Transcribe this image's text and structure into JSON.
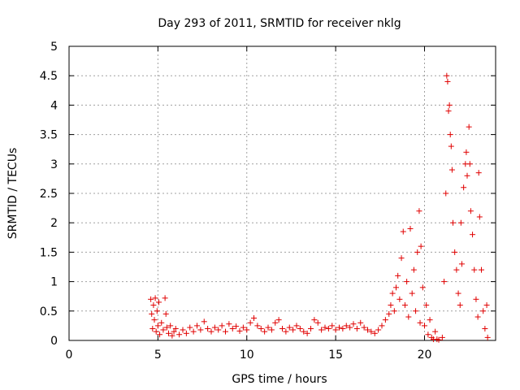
{
  "chart_data": {
    "type": "scatter",
    "title": "Day 293 of 2011, SRMTID for receiver nklg",
    "xlabel": "GPS time / hours",
    "ylabel": "SRMTID / TECUs",
    "xlim": [
      0,
      24
    ],
    "ylim": [
      0,
      5
    ],
    "xticks": [
      0,
      5,
      10,
      15,
      20
    ],
    "xtick_labels": [
      "0",
      "5",
      "10",
      "15",
      "20"
    ],
    "yticks": [
      0,
      0.5,
      1,
      1.5,
      2,
      2.5,
      3,
      3.5,
      4,
      4.5,
      5
    ],
    "ytick_labels": [
      "0",
      "0.5",
      "1",
      "1.5",
      "2",
      "2.5",
      "3",
      "3.5",
      "4",
      "4.5",
      "5"
    ],
    "grid": true,
    "marker": "+",
    "marker_color": "#e00000",
    "series": [
      {
        "name": "nklg",
        "points": [
          [
            4.6,
            0.7
          ],
          [
            4.65,
            0.45
          ],
          [
            4.7,
            0.2
          ],
          [
            4.75,
            0.6
          ],
          [
            4.8,
            0.35
          ],
          [
            4.85,
            0.72
          ],
          [
            4.9,
            0.15
          ],
          [
            4.95,
            0.5
          ],
          [
            5.0,
            0.25
          ],
          [
            5.05,
            0.65
          ],
          [
            5.1,
            0.1
          ],
          [
            5.2,
            0.3
          ],
          [
            5.3,
            0.18
          ],
          [
            5.4,
            0.72
          ],
          [
            5.45,
            0.45
          ],
          [
            5.5,
            0.22
          ],
          [
            5.6,
            0.12
          ],
          [
            5.7,
            0.25
          ],
          [
            5.8,
            0.08
          ],
          [
            5.9,
            0.15
          ],
          [
            6.0,
            0.2
          ],
          [
            6.2,
            0.1
          ],
          [
            6.4,
            0.18
          ],
          [
            6.6,
            0.12
          ],
          [
            6.8,
            0.22
          ],
          [
            7.0,
            0.15
          ],
          [
            7.2,
            0.25
          ],
          [
            7.4,
            0.18
          ],
          [
            7.6,
            0.32
          ],
          [
            7.8,
            0.2
          ],
          [
            8.0,
            0.15
          ],
          [
            8.2,
            0.22
          ],
          [
            8.4,
            0.18
          ],
          [
            8.6,
            0.25
          ],
          [
            8.8,
            0.15
          ],
          [
            9.0,
            0.28
          ],
          [
            9.2,
            0.2
          ],
          [
            9.4,
            0.24
          ],
          [
            9.6,
            0.16
          ],
          [
            9.8,
            0.22
          ],
          [
            10.0,
            0.18
          ],
          [
            10.2,
            0.3
          ],
          [
            10.4,
            0.38
          ],
          [
            10.6,
            0.25
          ],
          [
            10.8,
            0.2
          ],
          [
            11.0,
            0.15
          ],
          [
            11.2,
            0.22
          ],
          [
            11.4,
            0.18
          ],
          [
            11.6,
            0.3
          ],
          [
            11.8,
            0.35
          ],
          [
            12.0,
            0.2
          ],
          [
            12.2,
            0.15
          ],
          [
            12.4,
            0.22
          ],
          [
            12.6,
            0.18
          ],
          [
            12.8,
            0.25
          ],
          [
            13.0,
            0.2
          ],
          [
            13.2,
            0.15
          ],
          [
            13.4,
            0.12
          ],
          [
            13.6,
            0.2
          ],
          [
            13.8,
            0.35
          ],
          [
            14.0,
            0.3
          ],
          [
            14.2,
            0.18
          ],
          [
            14.4,
            0.22
          ],
          [
            14.6,
            0.2
          ],
          [
            14.8,
            0.25
          ],
          [
            15.0,
            0.18
          ],
          [
            15.2,
            0.22
          ],
          [
            15.4,
            0.2
          ],
          [
            15.6,
            0.25
          ],
          [
            15.8,
            0.22
          ],
          [
            16.0,
            0.28
          ],
          [
            16.2,
            0.2
          ],
          [
            16.4,
            0.3
          ],
          [
            16.6,
            0.22
          ],
          [
            16.8,
            0.18
          ],
          [
            17.0,
            0.15
          ],
          [
            17.2,
            0.12
          ],
          [
            17.4,
            0.18
          ],
          [
            17.6,
            0.25
          ],
          [
            17.8,
            0.35
          ],
          [
            18.0,
            0.45
          ],
          [
            18.1,
            0.6
          ],
          [
            18.2,
            0.8
          ],
          [
            18.3,
            0.5
          ],
          [
            18.4,
            0.9
          ],
          [
            18.5,
            1.1
          ],
          [
            18.6,
            0.7
          ],
          [
            18.7,
            1.4
          ],
          [
            18.8,
            1.85
          ],
          [
            18.9,
            0.6
          ],
          [
            19.0,
            1.0
          ],
          [
            19.1,
            0.4
          ],
          [
            19.2,
            1.9
          ],
          [
            19.3,
            0.8
          ],
          [
            19.4,
            1.2
          ],
          [
            19.5,
            0.5
          ],
          [
            19.6,
            1.5
          ],
          [
            19.7,
            2.2
          ],
          [
            19.75,
            0.3
          ],
          [
            19.8,
            1.6
          ],
          [
            19.9,
            0.9
          ],
          [
            20.0,
            0.25
          ],
          [
            20.1,
            0.6
          ],
          [
            20.2,
            0.1
          ],
          [
            20.3,
            0.35
          ],
          [
            20.4,
            0.05
          ],
          [
            20.5,
            0.02
          ],
          [
            20.6,
            0.15
          ],
          [
            20.7,
            0.02
          ],
          [
            20.8,
            0.01
          ],
          [
            21.0,
            0.05
          ],
          [
            21.1,
            1.0
          ],
          [
            21.2,
            2.5
          ],
          [
            21.25,
            4.5
          ],
          [
            21.3,
            4.4
          ],
          [
            21.35,
            3.9
          ],
          [
            21.4,
            4.0
          ],
          [
            21.45,
            3.5
          ],
          [
            21.5,
            3.3
          ],
          [
            21.55,
            2.9
          ],
          [
            21.6,
            2.0
          ],
          [
            21.7,
            1.5
          ],
          [
            21.8,
            1.2
          ],
          [
            21.9,
            0.8
          ],
          [
            22.0,
            0.6
          ],
          [
            22.05,
            2.0
          ],
          [
            22.1,
            1.3
          ],
          [
            22.2,
            2.6
          ],
          [
            22.3,
            3.0
          ],
          [
            22.35,
            3.2
          ],
          [
            22.4,
            2.8
          ],
          [
            22.5,
            3.63
          ],
          [
            22.55,
            3.0
          ],
          [
            22.6,
            2.2
          ],
          [
            22.7,
            1.8
          ],
          [
            22.8,
            1.2
          ],
          [
            22.9,
            0.7
          ],
          [
            23.0,
            0.4
          ],
          [
            23.05,
            2.85
          ],
          [
            23.1,
            2.1
          ],
          [
            23.2,
            1.2
          ],
          [
            23.3,
            0.5
          ],
          [
            23.4,
            0.2
          ],
          [
            23.5,
            0.6
          ],
          [
            23.55,
            0.05
          ]
        ]
      }
    ]
  }
}
